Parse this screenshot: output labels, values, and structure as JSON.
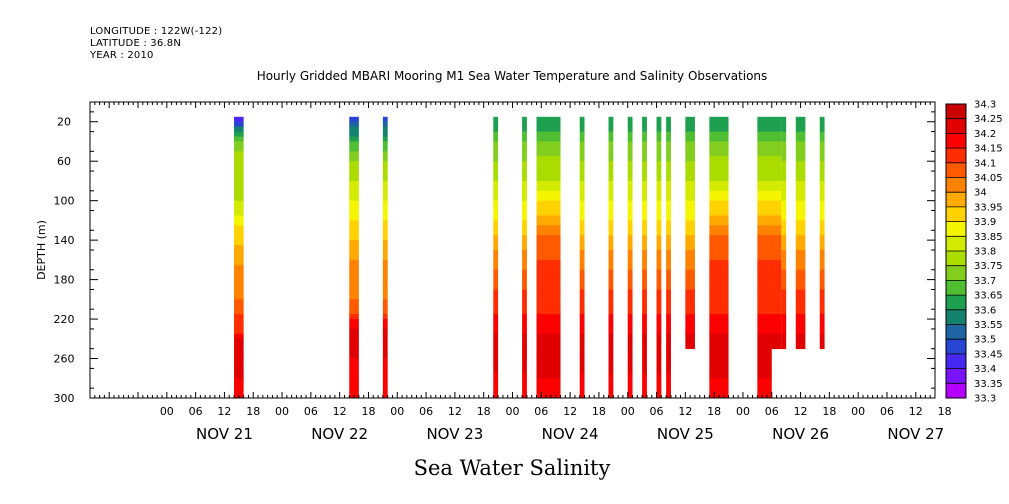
{
  "header": {
    "longitude": "LONGITUDE : 122W(-122)",
    "latitude": "LATITUDE : 36.8N",
    "year": "YEAR : 2010"
  },
  "chart_data": {
    "type": "heatmap",
    "title": "Hourly Gridded MBARI Mooring M1 Sea Water Temperature and Salinity Observations",
    "xlabel": "Sea Water Salinity",
    "ylabel": "DEPTH (m)",
    "x_range_hours": [
      -16,
      160
    ],
    "x_origin": "NOV 21 00",
    "ylim": [
      300,
      0
    ],
    "y_ticks": [
      20,
      60,
      100,
      140,
      180,
      220,
      260,
      300
    ],
    "hour_tick_labels": [
      "00",
      "06",
      "12",
      "18",
      "00",
      "06",
      "12",
      "18",
      "00",
      "06",
      "12",
      "18",
      "00",
      "06",
      "12",
      "18",
      "00",
      "06",
      "12",
      "18",
      "00",
      "06",
      "12",
      "18",
      "00",
      "06",
      "12",
      "18"
    ],
    "day_labels": [
      "NOV 21",
      "NOV 22",
      "NOV 23",
      "NOV 24",
      "NOV 25",
      "NOV 26",
      "NOV 27"
    ],
    "colorbar": {
      "levels": [
        "34.3",
        "34.25",
        "34.2",
        "34.15",
        "34.1",
        "34.05",
        "34",
        "33.95",
        "33.9",
        "33.85",
        "33.8",
        "33.75",
        "33.7",
        "33.65",
        "33.6",
        "33.55",
        "33.5",
        "33.45",
        "33.4",
        "33.35",
        "33.3"
      ],
      "colors": [
        "#c80000",
        "#e10000",
        "#fa0000",
        "#ff2d00",
        "#ff5a00",
        "#ff8200",
        "#ffaa00",
        "#ffd200",
        "#f5f500",
        "#d2eb00",
        "#aadc00",
        "#82cd1e",
        "#50be32",
        "#1ea050",
        "#14826e",
        "#1e64a0",
        "#2846d2",
        "#4628f0",
        "#7814ff",
        "#b400ff"
      ],
      "min": 33.3,
      "max": 34.3
    },
    "columns": [
      {
        "start": 14,
        "end": 16,
        "profile": "A"
      },
      {
        "start": 38,
        "end": 40,
        "profile": "C"
      },
      {
        "start": 45,
        "end": 46,
        "profile": "C"
      },
      {
        "start": 68,
        "end": 69,
        "profile": "B"
      },
      {
        "start": 74,
        "end": 75,
        "profile": "B"
      },
      {
        "start": 77,
        "end": 82,
        "profile": "S"
      },
      {
        "start": 86,
        "end": 87,
        "profile": "B"
      },
      {
        "start": 92,
        "end": 93,
        "profile": "B"
      },
      {
        "start": 96,
        "end": 97,
        "profile": "B"
      },
      {
        "start": 99,
        "end": 100,
        "profile": "B"
      },
      {
        "start": 102,
        "end": 103,
        "profile": "B"
      },
      {
        "start": 104,
        "end": 105,
        "profile": "B"
      },
      {
        "start": 108,
        "end": 110,
        "profile": "B",
        "bottom": 250
      },
      {
        "start": 113,
        "end": 117,
        "profile": "S"
      },
      {
        "start": 123,
        "end": 128,
        "profile": "S",
        "step": [
          126,
          250
        ]
      },
      {
        "start": 128,
        "end": 129,
        "profile": "B",
        "bottom": 250
      },
      {
        "start": 131,
        "end": 133,
        "profile": "B",
        "bottom": 250
      },
      {
        "start": 136,
        "end": 137,
        "profile": "B",
        "bottom": 250
      }
    ],
    "profiles": {
      "A": [
        [
          20,
          33.4
        ],
        [
          25,
          33.55
        ],
        [
          35,
          33.65
        ],
        [
          50,
          33.75
        ],
        [
          70,
          33.8
        ],
        [
          100,
          33.8
        ],
        [
          125,
          33.9
        ],
        [
          145,
          33.95
        ],
        [
          165,
          34.0
        ],
        [
          200,
          34.05
        ],
        [
          215,
          34.1
        ],
        [
          235,
          34.15
        ],
        [
          245,
          34.25
        ],
        [
          260,
          34.2
        ],
        [
          280,
          34.2
        ],
        [
          300,
          34.15
        ]
      ],
      "C": [
        [
          20,
          33.45
        ],
        [
          25,
          33.55
        ],
        [
          40,
          33.65
        ],
        [
          60,
          33.75
        ],
        [
          80,
          33.8
        ],
        [
          100,
          33.85
        ],
        [
          120,
          33.9
        ],
        [
          140,
          33.95
        ],
        [
          160,
          34.0
        ],
        [
          200,
          34.05
        ],
        [
          215,
          34.1
        ],
        [
          230,
          34.2
        ],
        [
          245,
          34.25
        ],
        [
          260,
          34.2
        ],
        [
          300,
          34.15
        ]
      ],
      "B": [
        [
          20,
          33.6
        ],
        [
          40,
          33.7
        ],
        [
          60,
          33.75
        ],
        [
          80,
          33.8
        ],
        [
          100,
          33.85
        ],
        [
          120,
          33.9
        ],
        [
          135,
          33.95
        ],
        [
          150,
          34.0
        ],
        [
          170,
          34.05
        ],
        [
          190,
          34.1
        ],
        [
          215,
          34.15
        ],
        [
          235,
          34.2
        ],
        [
          255,
          34.25
        ],
        [
          275,
          34.2
        ],
        [
          300,
          34.15
        ]
      ],
      "S": [
        [
          20,
          33.6
        ],
        [
          40,
          33.7
        ],
        [
          55,
          33.75
        ],
        [
          80,
          33.8
        ],
        [
          100,
          33.9
        ],
        [
          115,
          33.95
        ],
        [
          135,
          34.05
        ],
        [
          160,
          34.1
        ],
        [
          200,
          34.1
        ],
        [
          215,
          34.15
        ],
        [
          235,
          34.2
        ],
        [
          260,
          34.25
        ],
        [
          280,
          34.2
        ],
        [
          300,
          34.15
        ]
      ]
    }
  }
}
